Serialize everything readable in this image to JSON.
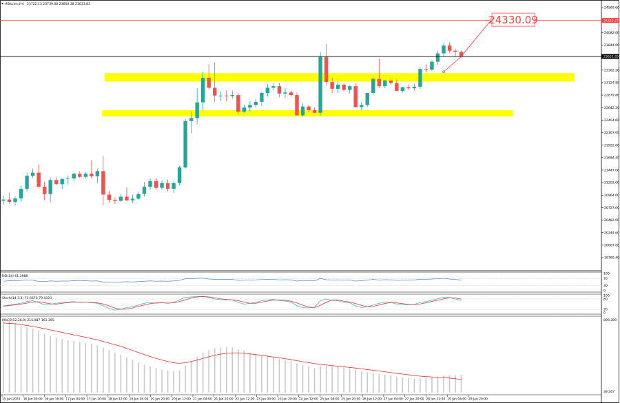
{
  "header": {
    "symbol": "#Bitcoin,H4",
    "ohlc": "23722.13 23739.08 23600.38 23631.83"
  },
  "annotations": {
    "target_label": "24330.09",
    "target_price": 24330.09,
    "current_price_label": "23631.83",
    "current_price": 23631.83,
    "resistance_line_label": "24323.27",
    "resistance_line_price": 24323.27,
    "zones": [
      {
        "name": "upper",
        "low": 23150,
        "high": 23310,
        "from": 17.2,
        "to": 97.3
      },
      {
        "name": "lower",
        "low": 22480,
        "high": 22600,
        "from": 16.8,
        "to": 86.8
      }
    ]
  },
  "price_ticks": [
    "24569.60",
    "24332.60",
    "24082.00",
    "23844.60",
    "23599.80",
    "23362.20",
    "23124.80",
    "22879.80",
    "22642.20",
    "22404.60",
    "22167.00",
    "21922.00",
    "21684.40",
    "21447.00",
    "21202.00",
    "20964.60",
    "20727.00",
    "20482.00",
    "20244.60",
    "20007.00",
    "19769.40"
  ],
  "time_ticks": [
    "15 Jan 2023",
    "16 Jan 00:00",
    "16 Jan 16:00",
    "17 Jan 04:00",
    "17 Jan 20:00",
    "18 Jan 12:00",
    "19 Jan 04:00",
    "19 Jan 20:00",
    "20 Jan 12:00",
    "21 Jan 04:00",
    "21 Jan 20:00",
    "22 Jan 12:00",
    "23 Jan 04:00",
    "23 Jan 20:00",
    "24 Jan 12:00",
    "25 Jan 04:00",
    "25 Jan 20:00",
    "26 Jan 12:00",
    "27 Jan 04:00",
    "27 Jan 20:00",
    "28 Jan 12:00",
    "29 Jan 04:00",
    "29 Jan 20:00"
  ],
  "indicators": {
    "rsi": {
      "label": "RSI(14) 61.3988",
      "levels": [
        "100",
        "70",
        "30",
        "0"
      ]
    },
    "stoch": {
      "label": "Stoch(14,3,3) 71.6670 79.4323",
      "levels": [
        "100",
        "80",
        "20",
        "0"
      ]
    },
    "macd": {
      "label": "MACD(12,26,9) 215.087 161.365",
      "levels": [
        "899.289",
        "39.267"
      ]
    }
  },
  "colors": {
    "bull": "#26a69a",
    "bear": "#ef5350",
    "zone": "#ffff00",
    "level_line": "#ff4040",
    "current_line": "#000000",
    "rsi_line": "#4a90d9",
    "stoch_main": "#3cb4c8",
    "stoch_signal": "#e03030",
    "macd_hist": "#c8c8c8",
    "macd_signal": "#e03030"
  },
  "chart_data": {
    "type": "candlestick",
    "symbol": "#Bitcoin",
    "timeframe": "H4",
    "y_range": [
      19769.4,
      24570
    ],
    "candles": [
      [
        20862,
        20960,
        20780,
        20885
      ],
      [
        20885,
        21020,
        20805,
        20840
      ],
      [
        20840,
        20950,
        20770,
        20905
      ],
      [
        20905,
        21150,
        20840,
        21090
      ],
      [
        21090,
        21400,
        21040,
        21340
      ],
      [
        21340,
        21480,
        21300,
        21400
      ],
      [
        21400,
        21560,
        21100,
        21130
      ],
      [
        21130,
        21230,
        20870,
        20990
      ],
      [
        20990,
        21300,
        20830,
        21260
      ],
      [
        21260,
        21320,
        21160,
        21180
      ],
      [
        21180,
        21290,
        21090,
        21280
      ],
      [
        21280,
        21340,
        21170,
        21290
      ],
      [
        21290,
        21400,
        21230,
        21380
      ],
      [
        21380,
        21430,
        21300,
        21320
      ],
      [
        21320,
        21410,
        21290,
        21380
      ],
      [
        21380,
        21640,
        21290,
        21330
      ],
      [
        21330,
        21480,
        21200,
        21430
      ],
      [
        21430,
        21720,
        20770,
        20980
      ],
      [
        20980,
        21050,
        20820,
        20880
      ],
      [
        20880,
        20930,
        20800,
        20860
      ],
      [
        20860,
        20990,
        20840,
        20940
      ],
      [
        20940,
        21120,
        20850,
        20870
      ],
      [
        20870,
        20980,
        20820,
        20900
      ],
      [
        20900,
        21040,
        20880,
        20990
      ],
      [
        20990,
        21220,
        20940,
        21130
      ],
      [
        21130,
        21290,
        21060,
        21240
      ],
      [
        21240,
        21290,
        21080,
        21110
      ],
      [
        21110,
        21250,
        21070,
        21200
      ],
      [
        21200,
        21270,
        21040,
        21090
      ],
      [
        21090,
        21240,
        21010,
        21200
      ],
      [
        21200,
        21530,
        21160,
        21500
      ],
      [
        21500,
        22430,
        21480,
        22390
      ],
      [
        22390,
        22580,
        22160,
        22450
      ],
      [
        22450,
        23020,
        22330,
        22750
      ],
      [
        22750,
        23340,
        22600,
        23220
      ],
      [
        23220,
        23480,
        23000,
        23030
      ],
      [
        23030,
        23520,
        22760,
        22880
      ],
      [
        22880,
        22960,
        22780,
        22880
      ],
      [
        22880,
        22990,
        22770,
        22870
      ],
      [
        22870,
        22980,
        22820,
        22890
      ],
      [
        22890,
        22930,
        22520,
        22570
      ],
      [
        22570,
        22710,
        22540,
        22650
      ],
      [
        22650,
        22780,
        22570,
        22700
      ],
      [
        22700,
        22820,
        22650,
        22760
      ],
      [
        22760,
        22960,
        22680,
        22930
      ],
      [
        22930,
        23100,
        22860,
        23030
      ],
      [
        23030,
        23120,
        22980,
        23060
      ],
      [
        23060,
        23130,
        22850,
        22920
      ],
      [
        22920,
        23020,
        22830,
        22940
      ],
      [
        22940,
        22980,
        22860,
        22890
      ],
      [
        22890,
        22940,
        22540,
        22500
      ],
      [
        22500,
        22730,
        22470,
        22670
      ],
      [
        22670,
        22700,
        22560,
        22600
      ],
      [
        22600,
        22650,
        22540,
        22550
      ],
      [
        22550,
        23720,
        22500,
        23620
      ],
      [
        23620,
        23870,
        23080,
        23140
      ],
      [
        23140,
        23220,
        22930,
        23010
      ],
      [
        23010,
        23150,
        22930,
        23090
      ],
      [
        23090,
        23120,
        22960,
        22990
      ],
      [
        22990,
        23080,
        22920,
        23060
      ],
      [
        23060,
        23120,
        22650,
        22660
      ],
      [
        22660,
        22750,
        22600,
        22700
      ],
      [
        22700,
        22930,
        22660,
        22930
      ],
      [
        22930,
        23230,
        22880,
        23200
      ],
      [
        23200,
        23590,
        23020,
        23060
      ],
      [
        23060,
        23180,
        23020,
        23170
      ],
      [
        23170,
        23210,
        23090,
        23120
      ],
      [
        23120,
        23190,
        22960,
        22970
      ],
      [
        22970,
        23050,
        22940,
        23040
      ],
      [
        23040,
        23090,
        22990,
        23020
      ],
      [
        23020,
        23110,
        22970,
        23050
      ],
      [
        23050,
        23430,
        23010,
        23390
      ],
      [
        23390,
        23480,
        23330,
        23380
      ],
      [
        23380,
        23560,
        23350,
        23530
      ],
      [
        23530,
        23740,
        23470,
        23690
      ],
      [
        23690,
        23890,
        23620,
        23840
      ],
      [
        23840,
        23900,
        23700,
        23740
      ],
      [
        23740,
        23780,
        23620,
        23722.13
      ],
      [
        23722.13,
        23739.08,
        23600.38,
        23631.83
      ]
    ],
    "rsi": [
      55,
      58,
      57,
      60,
      62,
      61,
      54,
      53,
      57,
      55,
      56,
      56,
      58,
      57,
      58,
      56,
      57,
      50,
      49,
      49,
      51,
      52,
      51,
      53,
      55,
      57,
      55,
      56,
      55,
      57,
      60,
      70,
      70,
      72,
      73,
      68,
      66,
      66,
      66,
      66,
      60,
      61,
      62,
      63,
      65,
      66,
      66,
      63,
      64,
      63,
      56,
      59,
      59,
      57,
      72,
      64,
      62,
      63,
      61,
      62,
      56,
      58,
      62,
      66,
      62,
      64,
      63,
      60,
      61,
      61,
      62,
      67,
      66,
      68,
      70,
      72,
      68,
      65,
      61.3988
    ],
    "stoch_main": [
      40,
      45,
      50,
      55,
      65,
      70,
      60,
      45,
      50,
      55,
      60,
      62,
      65,
      60,
      62,
      58,
      55,
      40,
      25,
      15,
      20,
      30,
      35,
      45,
      55,
      60,
      55,
      58,
      55,
      60,
      75,
      90,
      92,
      94,
      95,
      88,
      80,
      76,
      74,
      75,
      60,
      50,
      55,
      60,
      70,
      75,
      78,
      70,
      68,
      62,
      40,
      30,
      28,
      32,
      70,
      80,
      72,
      70,
      60,
      58,
      40,
      30,
      35,
      45,
      55,
      62,
      60,
      50,
      48,
      46,
      48,
      60,
      65,
      72,
      82,
      90,
      88,
      80,
      71.667
    ],
    "stoch_signal": [
      38,
      42,
      46,
      50,
      56,
      62,
      64,
      58,
      52,
      50,
      55,
      59,
      62,
      62,
      62,
      60,
      58,
      51,
      40,
      27,
      20,
      22,
      28,
      37,
      45,
      53,
      57,
      58,
      56,
      58,
      65,
      75,
      86,
      92,
      94,
      92,
      87,
      81,
      77,
      75,
      70,
      62,
      55,
      55,
      62,
      68,
      74,
      74,
      72,
      67,
      57,
      44,
      33,
      30,
      43,
      61,
      74,
      74,
      67,
      63,
      53,
      43,
      35,
      37,
      45,
      54,
      59,
      57,
      53,
      48,
      47,
      51,
      58,
      66,
      73,
      81,
      87,
      86,
      79.4323
    ],
    "macd_hist": [
      899,
      880,
      850,
      820,
      800,
      780,
      760,
      720,
      690,
      670,
      650,
      640,
      630,
      620,
      605,
      595,
      580,
      550,
      520,
      490,
      460,
      430,
      400,
      370,
      340,
      320,
      300,
      280,
      270,
      260,
      270,
      330,
      390,
      440,
      490,
      520,
      540,
      550,
      555,
      550,
      530,
      510,
      490,
      470,
      455,
      440,
      430,
      415,
      400,
      385,
      360,
      340,
      320,
      300,
      320,
      330,
      325,
      320,
      310,
      300,
      280,
      260,
      245,
      240,
      230,
      220,
      210,
      195,
      185,
      175,
      170,
      175,
      180,
      190,
      200,
      210,
      215,
      213,
      215.087
    ],
    "macd_signal": [
      850,
      845,
      840,
      830,
      820,
      808,
      795,
      780,
      765,
      750,
      735,
      720,
      705,
      690,
      675,
      660,
      645,
      625,
      605,
      585,
      565,
      540,
      515,
      490,
      465,
      440,
      418,
      398,
      380,
      365,
      358,
      365,
      380,
      398,
      418,
      438,
      456,
      470,
      480,
      485,
      485,
      480,
      473,
      465,
      455,
      445,
      435,
      425,
      415,
      403,
      390,
      378,
      366,
      355,
      346,
      338,
      330,
      322,
      315,
      308,
      300,
      291,
      282,
      273,
      264,
      255,
      245,
      236,
      227,
      218,
      209,
      202,
      196,
      191,
      186,
      182,
      178,
      170,
      161.365
    ]
  }
}
